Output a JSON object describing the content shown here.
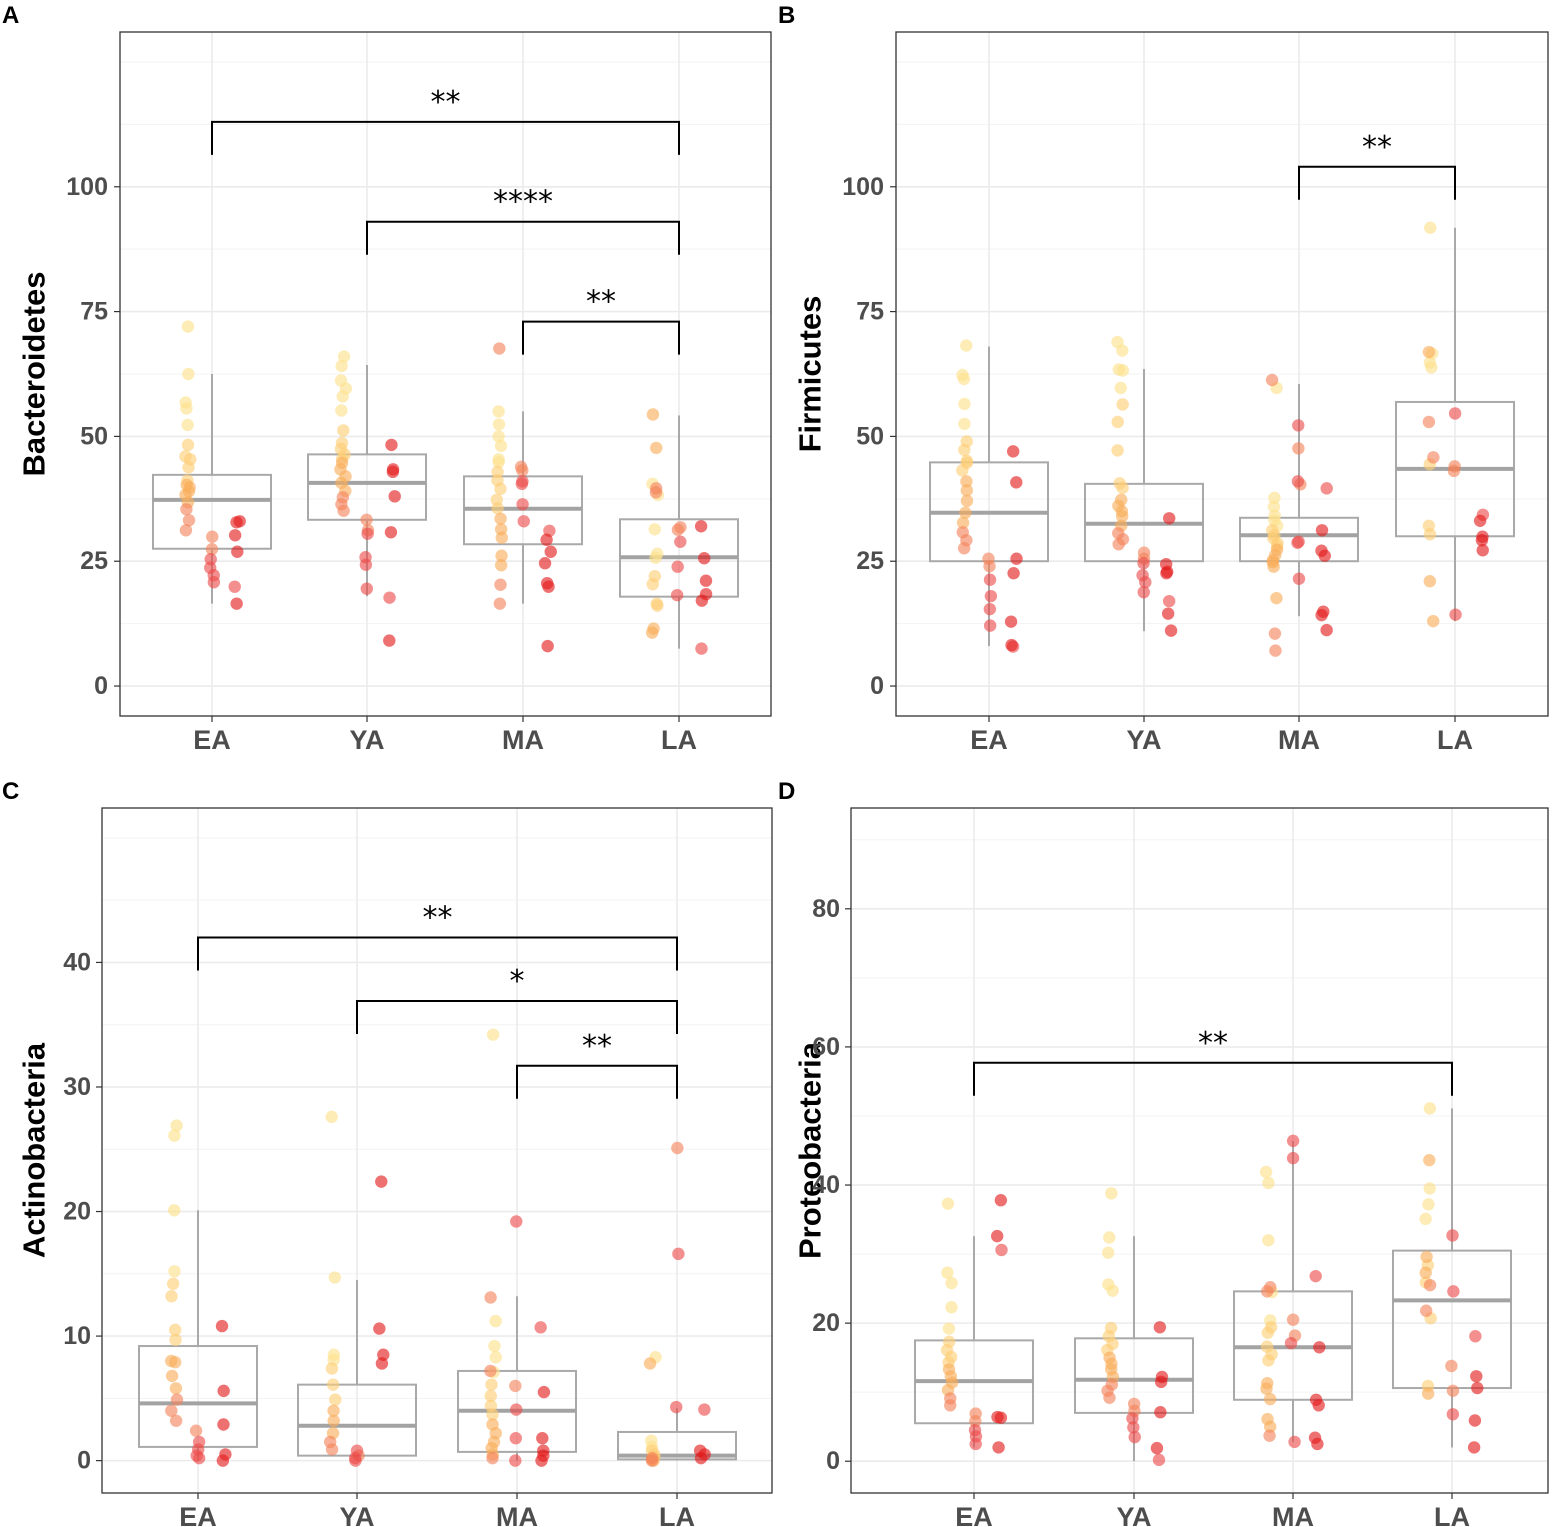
{
  "chart_data": [
    {
      "panel": "A",
      "type": "box+jitter",
      "ylabel": "Bacteroidetes",
      "categories": [
        "EA",
        "YA",
        "MA",
        "LA"
      ],
      "ylim": [
        -6,
        131
      ],
      "yticks": [
        0,
        25,
        50,
        75,
        100
      ],
      "grid": true,
      "boxes": [
        {
          "category": "EA",
          "q1": 27.5,
          "median": 37.3,
          "q3": 42.3,
          "whisker_low": 16.5,
          "whisker_high": 62.5
        },
        {
          "category": "YA",
          "q1": 33.3,
          "median": 40.7,
          "q3": 46.4,
          "whisker_low": 18.0,
          "whisker_high": 64.3
        },
        {
          "category": "MA",
          "q1": 28.4,
          "median": 35.5,
          "q3": 42.0,
          "whisker_low": 16.5,
          "whisker_high": 55.0
        },
        {
          "category": "LA",
          "q1": 17.9,
          "median": 25.8,
          "q3": 33.4,
          "whisker_low": 7.5,
          "whisker_high": 54.2
        }
      ],
      "points": [
        {
          "category": "EA",
          "values": [
            72,
            62.5,
            56.8,
            55.6,
            52.3,
            48.3,
            46.0,
            45.4,
            43.8,
            41.2,
            40.3,
            39.8,
            39.0,
            38.3,
            36.8,
            35.4,
            33.2,
            31.2,
            29.9,
            27.4,
            25.4,
            23.7,
            22.2,
            20.8,
            19.9,
            16.5,
            33.0,
            30.2,
            32.8,
            26.9
          ]
        },
        {
          "category": "YA",
          "values": [
            66.0,
            64.1,
            61.2,
            59.6,
            58.0,
            55.2,
            51.2,
            48.7,
            47.5,
            46.4,
            45.5,
            44.7,
            43.4,
            42.0,
            40.7,
            39.1,
            37.8,
            36.4,
            35.1,
            33.3,
            31.2,
            30.5,
            25.8,
            24.3,
            19.5,
            17.7,
            9.1,
            48.3,
            43.4,
            42.9,
            38.0,
            30.8
          ]
        },
        {
          "category": "MA",
          "values": [
            55.0,
            52.4,
            50.0,
            48.1,
            45.4,
            44.8,
            42.9,
            41.2,
            39.5,
            37.3,
            35.6,
            33.5,
            31.4,
            29.7,
            26.1,
            24.2,
            20.3,
            16.5,
            67.6,
            43.9,
            43.2,
            41.0,
            40.5,
            36.4,
            33.0,
            31.1,
            29.3,
            26.9,
            24.6,
            20.6,
            19.9,
            8.0
          ]
        },
        {
          "category": "LA",
          "values": [
            40.5,
            38.3,
            31.4,
            26.5,
            25.7,
            22.0,
            20.4,
            16.5,
            16.1,
            11.5,
            10.7,
            54.4,
            47.7,
            39.6,
            38.8,
            31.8,
            31.3,
            28.9,
            23.9,
            18.2,
            7.5,
            32.0,
            25.6,
            21.1,
            18.4,
            17.1
          ]
        }
      ],
      "significance": [
        {
          "from": "EA",
          "to": "LA",
          "label": "**",
          "y": 113
        },
        {
          "from": "YA",
          "to": "LA",
          "label": "****",
          "y": 93
        },
        {
          "from": "MA",
          "to": "LA",
          "label": "**",
          "y": 73
        }
      ]
    },
    {
      "panel": "B",
      "type": "box+jitter",
      "ylabel": "Firmicutes",
      "categories": [
        "EA",
        "YA",
        "MA",
        "LA"
      ],
      "ylim": [
        -6,
        131
      ],
      "yticks": [
        0,
        25,
        50,
        75,
        100
      ],
      "grid": true,
      "boxes": [
        {
          "category": "EA",
          "q1": 25.0,
          "median": 34.7,
          "q3": 44.8,
          "whisker_low": 8.0,
          "whisker_high": 68.0
        },
        {
          "category": "YA",
          "q1": 25.0,
          "median": 32.5,
          "q3": 40.5,
          "whisker_low": 11.0,
          "whisker_high": 63.5
        },
        {
          "category": "MA",
          "q1": 25.0,
          "median": 30.2,
          "q3": 33.7,
          "whisker_low": 14.0,
          "whisker_high": 60.5
        },
        {
          "category": "LA",
          "q1": 30.0,
          "median": 43.5,
          "q3": 56.9,
          "whisker_low": 13.0,
          "whisker_high": 91.8
        }
      ],
      "points": [
        {
          "category": "EA",
          "values": [
            68.2,
            62.3,
            61.5,
            56.5,
            52.5,
            49.0,
            47.3,
            45.1,
            44.7,
            43.2,
            41.0,
            39.2,
            37.1,
            34.7,
            32.7,
            30.8,
            29.2,
            27.6,
            25.5,
            24.0,
            21.3,
            18.0,
            15.4,
            12.1,
            7.9,
            47.0,
            40.8,
            25.5,
            12.9,
            22.6,
            8.2
          ]
        },
        {
          "category": "YA",
          "values": [
            68.9,
            67.2,
            63.4,
            63.2,
            59.7,
            56.4,
            52.9,
            47.2,
            40.6,
            39.7,
            37.3,
            36.1,
            35.0,
            34.0,
            32.1,
            30.6,
            29.4,
            28.4,
            26.7,
            25.5,
            24.6,
            22.2,
            20.8,
            18.8,
            17.0,
            14.5,
            11.1,
            22.6,
            33.6,
            24.4,
            22.9
          ]
        },
        {
          "category": "MA",
          "values": [
            59.7,
            37.7,
            35.9,
            34.1,
            33.2,
            32.1,
            31.2,
            30.2,
            29.6,
            28.6,
            28.0,
            27.3,
            26.2,
            25.2,
            24.8,
            23.9,
            17.6,
            10.5,
            7.1,
            61.3,
            47.6,
            40.4,
            28.9,
            28.7,
            21.5,
            52.2,
            41.0,
            39.6,
            31.2,
            27.1,
            26.1,
            14.9,
            14.2,
            11.2
          ]
        },
        {
          "category": "LA",
          "values": [
            91.8,
            66.6,
            64.8,
            63.8,
            44.4,
            32.1,
            30.4,
            21.0,
            13.0,
            66.9,
            52.9,
            45.8,
            44.0,
            43.1,
            14.3,
            54.6,
            34.3,
            33.1,
            29.9,
            29.2,
            27.2
          ]
        }
      ],
      "significance": [
        {
          "from": "MA",
          "to": "LA",
          "label": "**",
          "y": 104
        }
      ]
    },
    {
      "panel": "C",
      "type": "box+jitter",
      "ylabel": "Actinobacteria",
      "categories": [
        "EA",
        "YA",
        "MA",
        "LA"
      ],
      "ylim": [
        -2.6,
        52.4
      ],
      "yticks": [
        0,
        10,
        20,
        30,
        40
      ],
      "grid": true,
      "boxes": [
        {
          "category": "EA",
          "q1": 1.1,
          "median": 4.6,
          "q3": 9.2,
          "whisker_low": 0.0,
          "whisker_high": 20.1
        },
        {
          "category": "YA",
          "q1": 0.4,
          "median": 2.8,
          "q3": 6.1,
          "whisker_low": 0.0,
          "whisker_high": 14.5
        },
        {
          "category": "MA",
          "q1": 0.7,
          "median": 4.0,
          "q3": 7.2,
          "whisker_low": 0.0,
          "whisker_high": 13.2
        },
        {
          "category": "LA",
          "q1": 0.1,
          "median": 0.4,
          "q3": 2.3,
          "whisker_low": 0.0,
          "whisker_high": 4.2
        }
      ],
      "points": [
        {
          "category": "EA",
          "values": [
            26.9,
            26.1,
            20.1,
            15.2,
            14.2,
            13.2,
            10.5,
            9.7,
            8.0,
            7.9,
            6.8,
            5.8,
            4.9,
            4.0,
            3.2,
            2.4,
            1.5,
            0.9,
            0.4,
            0.2,
            10.8,
            0.5,
            0.0,
            5.6,
            2.9
          ]
        },
        {
          "category": "YA",
          "values": [
            27.6,
            14.7,
            8.5,
            8.1,
            7.4,
            6.1,
            4.9,
            4.0,
            3.2,
            2.2,
            1.5,
            0.9,
            0.4,
            0.2,
            0.0,
            0.8,
            10.6,
            22.4,
            8.5,
            7.8
          ]
        },
        {
          "category": "MA",
          "values": [
            34.2,
            11.2,
            9.2,
            8.3,
            7.1,
            6.1,
            5.2,
            4.4,
            3.7,
            2.9,
            2.2,
            1.5,
            1.0,
            0.5,
            0.2,
            13.1,
            7.2,
            6.0,
            4.1,
            1.8,
            0.0,
            19.2,
            10.7,
            5.5,
            1.8,
            0.8,
            0.4,
            0.0
          ]
        },
        {
          "category": "LA",
          "values": [
            8.3,
            1.6,
            1.1,
            0.8,
            0.5,
            0.3,
            0.1,
            0.0,
            7.8,
            0.2,
            0.0,
            25.1,
            16.6,
            4.3,
            4.1,
            0.8,
            0.5,
            0.2
          ]
        }
      ],
      "significance": [
        {
          "from": "EA",
          "to": "LA",
          "label": "**",
          "y": 42
        },
        {
          "from": "YA",
          "to": "LA",
          "label": "*",
          "y": 36.9
        },
        {
          "from": "MA",
          "to": "LA",
          "label": "**",
          "y": 31.7
        }
      ]
    },
    {
      "panel": "D",
      "type": "box+jitter",
      "ylabel": "Proteobacteria",
      "categories": [
        "EA",
        "YA",
        "MA",
        "LA"
      ],
      "ylim": [
        -4.6,
        94.6
      ],
      "yticks": [
        0,
        20,
        40,
        60,
        80
      ],
      "grid": true,
      "boxes": [
        {
          "category": "EA",
          "q1": 5.5,
          "median": 11.6,
          "q3": 17.5,
          "whisker_low": 2.0,
          "whisker_high": 32.6
        },
        {
          "category": "YA",
          "q1": 7.0,
          "median": 11.8,
          "q3": 17.8,
          "whisker_low": 0.0,
          "whisker_high": 32.6
        },
        {
          "category": "MA",
          "q1": 8.9,
          "median": 16.5,
          "q3": 24.6,
          "whisker_low": 2.8,
          "whisker_high": 46.4
        },
        {
          "category": "LA",
          "q1": 10.6,
          "median": 23.3,
          "q3": 30.5,
          "whisker_low": 2.0,
          "whisker_high": 51.1
        }
      ],
      "points": [
        {
          "category": "EA",
          "values": [
            37.3,
            27.3,
            25.8,
            22.3,
            19.2,
            17.3,
            16.1,
            15.1,
            14.3,
            13.3,
            12.3,
            11.4,
            10.3,
            9.1,
            8.1,
            6.9,
            5.8,
            4.5,
            3.6,
            2.5,
            30.6,
            6.3,
            6.4,
            2.0,
            37.8,
            32.6
          ]
        },
        {
          "category": "YA",
          "values": [
            38.8,
            32.4,
            30.2,
            25.6,
            24.7,
            19.3,
            18.1,
            17.0,
            16.1,
            15.0,
            14.1,
            13.3,
            12.2,
            11.1,
            10.2,
            9.2,
            8.3,
            7.3,
            6.2,
            4.9,
            3.5,
            0.2,
            19.4,
            7.1,
            12.2,
            11.5,
            1.9
          ]
        },
        {
          "category": "MA",
          "values": [
            41.9,
            40.3,
            32.0,
            24.5,
            20.4,
            19.4,
            18.6,
            16.6,
            15.5,
            14.6,
            11.3,
            10.5,
            9.0,
            6.1,
            5.0,
            3.7,
            25.2,
            24.6,
            20.5,
            18.2,
            17.1,
            2.8,
            46.4,
            43.9,
            26.8,
            16.5,
            8.9,
            8.1,
            3.4,
            2.5
          ]
        },
        {
          "category": "LA",
          "values": [
            51.1,
            39.5,
            37.2,
            35.1,
            28.4,
            25.9,
            20.7,
            10.9,
            9.8,
            43.6,
            29.6,
            27.3,
            25.5,
            21.8,
            13.8,
            10.2,
            6.8,
            32.7,
            24.6,
            18.1,
            12.3,
            10.6,
            5.9,
            2.0
          ]
        }
      ],
      "significance": [
        {
          "from": "EA",
          "to": "LA",
          "label": "**",
          "y": 57.7
        }
      ]
    }
  ]
}
